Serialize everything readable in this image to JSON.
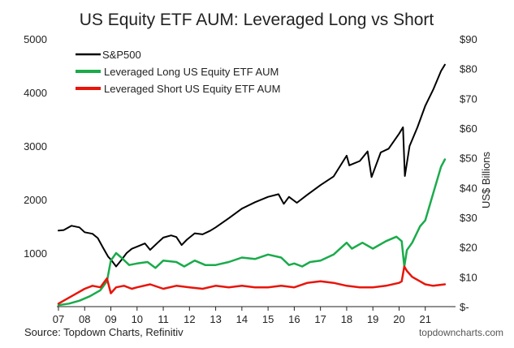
{
  "chart_data": {
    "type": "line",
    "title": "US Equity ETF AUM: Leveraged Long vs Short",
    "source": "Source: Topdown Charts, Refinitiv",
    "watermark": "topdowncharts.com",
    "x_tick_labels": [
      "07",
      "08",
      "09",
      "10",
      "11",
      "12",
      "13",
      "14",
      "15",
      "16",
      "17",
      "18",
      "19",
      "20",
      "21"
    ],
    "x_tick_values": [
      2007,
      2008,
      2009,
      2010,
      2011,
      2012,
      2013,
      2014,
      2015,
      2016,
      2017,
      2018,
      2019,
      2020,
      2021
    ],
    "xlim": [
      2007,
      2022
    ],
    "left_axis": {
      "label": "",
      "ylim": [
        0,
        5000
      ],
      "ticks": [
        1000,
        2000,
        3000,
        4000,
        5000
      ],
      "tick_labels": [
        "1000",
        "2000",
        "3000",
        "4000",
        "5000"
      ]
    },
    "right_axis": {
      "label": "US$ Billions",
      "ylim": [
        0,
        90
      ],
      "ticks": [
        0,
        10,
        20,
        30,
        40,
        50,
        60,
        70,
        80,
        90
      ],
      "tick_labels": [
        "$-",
        "$10",
        "$20",
        "$30",
        "$40",
        "$50",
        "$60",
        "$70",
        "$80",
        "$90"
      ]
    },
    "grid": false,
    "legend_position": "top-left",
    "series": [
      {
        "name": "S&P500",
        "axis": "left",
        "color": "#000000",
        "x": [
          2007.0,
          2007.2,
          2007.5,
          2007.8,
          2008.0,
          2008.3,
          2008.5,
          2008.7,
          2008.9,
          2009.0,
          2009.2,
          2009.4,
          2009.6,
          2009.8,
          2010.0,
          2010.3,
          2010.5,
          2010.8,
          2011.0,
          2011.3,
          2011.5,
          2011.7,
          2011.9,
          2012.2,
          2012.5,
          2012.8,
          2013.0,
          2013.5,
          2014.0,
          2014.5,
          2015.0,
          2015.4,
          2015.6,
          2015.8,
          2016.1,
          2016.5,
          2017.0,
          2017.5,
          2018.0,
          2018.1,
          2018.5,
          2018.8,
          2018.95,
          2019.3,
          2019.6,
          2020.0,
          2020.15,
          2020.22,
          2020.4,
          2020.7,
          2021.0,
          2021.3,
          2021.6,
          2021.75
        ],
        "y": [
          1420,
          1430,
          1510,
          1480,
          1390,
          1360,
          1280,
          1100,
          930,
          880,
          750,
          870,
          1000,
          1080,
          1120,
          1180,
          1060,
          1200,
          1290,
          1330,
          1300,
          1150,
          1250,
          1370,
          1350,
          1420,
          1480,
          1650,
          1830,
          1950,
          2050,
          2100,
          1920,
          2050,
          1940,
          2090,
          2270,
          2430,
          2820,
          2640,
          2720,
          2900,
          2420,
          2880,
          2950,
          3230,
          3350,
          2440,
          3000,
          3350,
          3750,
          4050,
          4400,
          4520
        ]
      },
      {
        "name": "Leveraged Long US Equity ETF AUM",
        "axis": "right",
        "color": "#1aab4b",
        "x": [
          2007.0,
          2007.4,
          2007.8,
          2008.2,
          2008.6,
          2008.85,
          2009.0,
          2009.2,
          2009.4,
          2009.7,
          2010.0,
          2010.4,
          2010.7,
          2011.0,
          2011.5,
          2011.8,
          2012.2,
          2012.6,
          2013.0,
          2013.5,
          2014.0,
          2014.5,
          2015.0,
          2015.5,
          2015.8,
          2016.0,
          2016.3,
          2016.6,
          2017.0,
          2017.5,
          2018.0,
          2018.2,
          2018.6,
          2019.0,
          2019.5,
          2019.9,
          2020.1,
          2020.2,
          2020.3,
          2020.5,
          2020.8,
          2021.0,
          2021.3,
          2021.6,
          2021.75
        ],
        "y": [
          0.5,
          1.0,
          2.0,
          3.5,
          5.5,
          8.5,
          15.5,
          18.0,
          16.5,
          14.0,
          14.5,
          15.0,
          13.0,
          15.5,
          15.0,
          13.5,
          15.5,
          14.0,
          14.0,
          15.0,
          16.5,
          16.0,
          17.5,
          16.5,
          14.0,
          14.5,
          13.5,
          15.0,
          15.5,
          17.5,
          21.5,
          19.5,
          21.5,
          19.5,
          22.0,
          23.5,
          22.0,
          13.5,
          19.0,
          21.5,
          27.0,
          29.0,
          38.0,
          47.0,
          49.5
        ]
      },
      {
        "name": "Leveraged Short US Equity ETF AUM",
        "axis": "right",
        "color": "#e8150b",
        "x": [
          2007.0,
          2007.3,
          2007.6,
          2008.0,
          2008.3,
          2008.6,
          2008.85,
          2009.0,
          2009.2,
          2009.5,
          2009.8,
          2010.0,
          2010.5,
          2011.0,
          2011.5,
          2012.0,
          2012.5,
          2013.0,
          2013.5,
          2014.0,
          2014.5,
          2015.0,
          2015.5,
          2016.0,
          2016.5,
          2017.0,
          2017.5,
          2018.0,
          2018.5,
          2019.0,
          2019.5,
          2020.0,
          2020.1,
          2020.2,
          2020.3,
          2020.5,
          2020.8,
          2021.0,
          2021.3,
          2021.75
        ],
        "y": [
          1.0,
          2.5,
          4.0,
          6.0,
          7.0,
          6.5,
          9.5,
          4.5,
          6.5,
          7.0,
          6.0,
          6.5,
          7.5,
          6.0,
          7.0,
          6.5,
          6.0,
          7.0,
          6.5,
          7.0,
          6.5,
          6.5,
          7.0,
          6.5,
          8.0,
          8.5,
          8.0,
          7.0,
          6.5,
          6.5,
          7.0,
          8.0,
          8.5,
          13.5,
          12.0,
          10.0,
          8.5,
          7.5,
          7.0,
          7.5
        ]
      }
    ]
  }
}
